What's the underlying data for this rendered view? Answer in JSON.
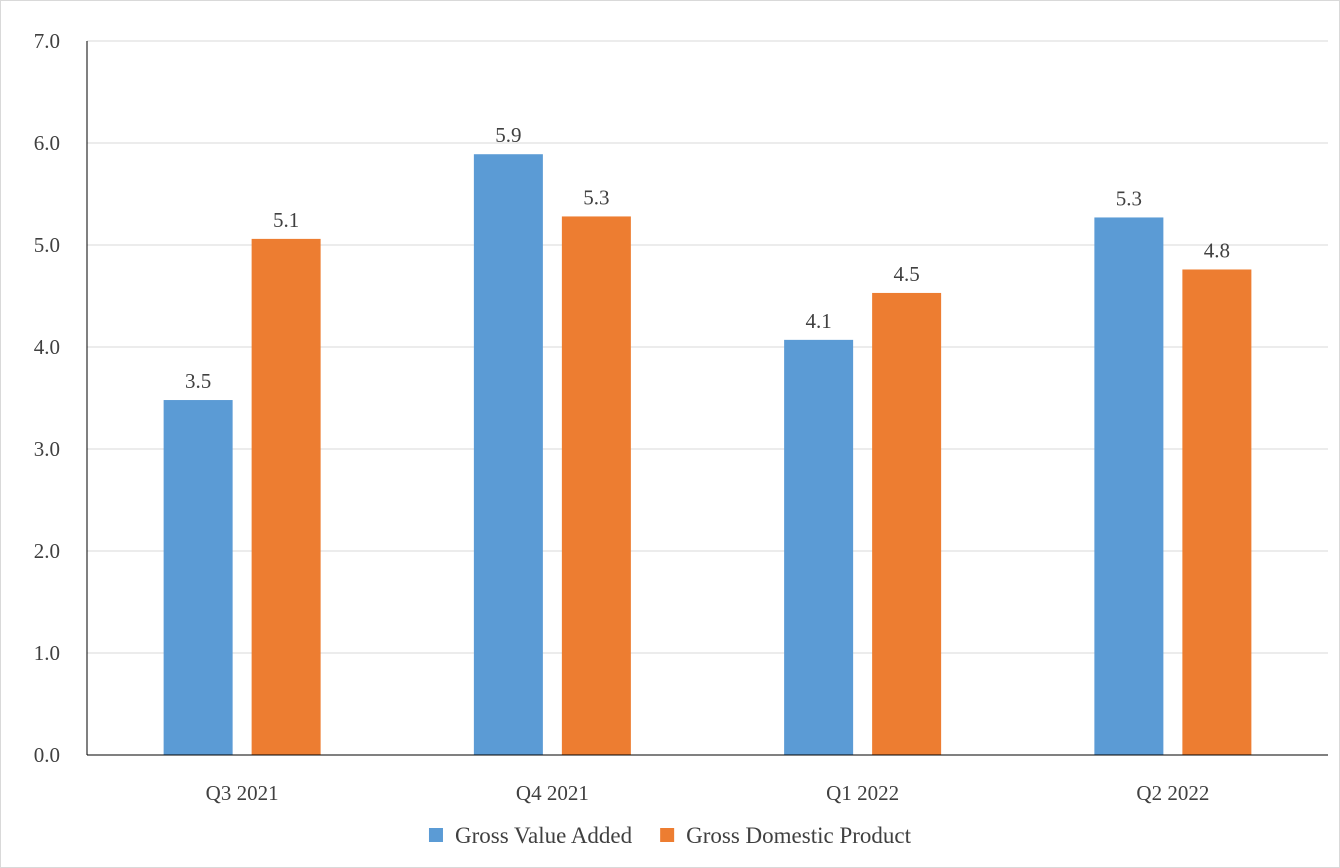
{
  "chart_data": {
    "type": "bar",
    "categories": [
      "Q3 2021",
      "Q4 2021",
      "Q1 2022",
      "Q2 2022"
    ],
    "series": [
      {
        "name": "Gross Value Added",
        "values": [
          3.48,
          5.89,
          4.07,
          5.27
        ],
        "labels": [
          "3.5",
          "5.9",
          "4.1",
          "5.3"
        ],
        "color": "#5b9bd5"
      },
      {
        "name": "Gross Domestic Product",
        "values": [
          5.06,
          5.28,
          4.53,
          4.76
        ],
        "labels": [
          "5.1",
          "5.3",
          "4.5",
          "4.8"
        ],
        "color": "#ed7d31"
      }
    ],
    "ylim": [
      0,
      7
    ],
    "yticks": [
      "0.0",
      "1.0",
      "2.0",
      "3.0",
      "4.0",
      "5.0",
      "6.0",
      "7.0"
    ],
    "grid": true,
    "legend_position": "bottom",
    "title": "",
    "xlabel": "",
    "ylabel": ""
  }
}
